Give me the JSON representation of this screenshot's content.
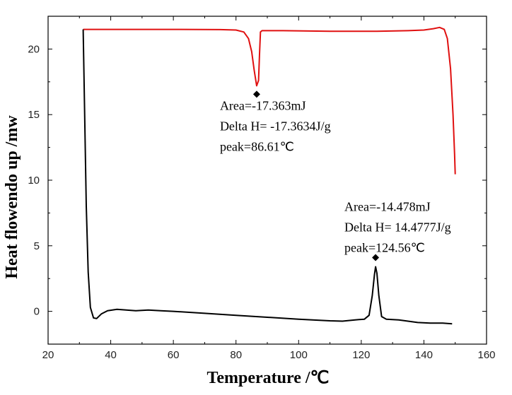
{
  "chart_data": {
    "type": "line",
    "xlabel": "Temperature /℃",
    "ylabel": "Heat flowendo up /mw",
    "xlim": [
      20,
      160
    ],
    "ylim": [
      -2.5,
      22.5
    ],
    "xticks": [
      20,
      40,
      60,
      80,
      100,
      120,
      140,
      160
    ],
    "yticks": [
      0,
      5,
      10,
      15,
      20
    ],
    "grid": false,
    "series": [
      {
        "color": "#e01010",
        "points": [
          [
            31.2,
            21.5
          ],
          [
            40,
            21.5
          ],
          [
            60,
            21.5
          ],
          [
            75,
            21.48
          ],
          [
            80,
            21.45
          ],
          [
            82.5,
            21.3
          ],
          [
            84,
            20.8
          ],
          [
            85,
            19.8
          ],
          [
            85.8,
            18.4
          ],
          [
            86.6,
            17.2
          ],
          [
            87.2,
            17.6
          ],
          [
            87.5,
            19.5
          ],
          [
            87.8,
            21.3
          ],
          [
            88.3,
            21.4
          ],
          [
            95,
            21.4
          ],
          [
            110,
            21.35
          ],
          [
            125,
            21.35
          ],
          [
            135,
            21.4
          ],
          [
            140,
            21.45
          ],
          [
            143,
            21.55
          ],
          [
            145,
            21.65
          ],
          [
            146.5,
            21.5
          ],
          [
            147.5,
            20.8
          ],
          [
            148.5,
            18.5
          ],
          [
            149.3,
            15
          ],
          [
            149.8,
            12
          ],
          [
            150,
            10.45
          ]
        ]
      },
      {
        "color": "#000000",
        "points": [
          [
            31.2,
            21.5
          ],
          [
            31.6,
            16
          ],
          [
            32.2,
            8
          ],
          [
            32.8,
            3
          ],
          [
            33.5,
            0.3
          ],
          [
            34.5,
            -0.5
          ],
          [
            35.5,
            -0.55
          ],
          [
            37,
            -0.2
          ],
          [
            39,
            0.05
          ],
          [
            42,
            0.15
          ],
          [
            45,
            0.1
          ],
          [
            48,
            0.05
          ],
          [
            52,
            0.1
          ],
          [
            56,
            0.05
          ],
          [
            60,
            0.0
          ],
          [
            70,
            -0.15
          ],
          [
            80,
            -0.3
          ],
          [
            90,
            -0.45
          ],
          [
            100,
            -0.6
          ],
          [
            110,
            -0.72
          ],
          [
            114,
            -0.75
          ],
          [
            118,
            -0.65
          ],
          [
            121,
            -0.6
          ],
          [
            122.5,
            -0.3
          ],
          [
            123.5,
            1.2
          ],
          [
            124.2,
            2.8
          ],
          [
            124.56,
            3.4
          ],
          [
            125,
            2.9
          ],
          [
            125.6,
            1.2
          ],
          [
            126.5,
            -0.4
          ],
          [
            128,
            -0.6
          ],
          [
            132,
            -0.65
          ],
          [
            138,
            -0.85
          ],
          [
            142,
            -0.9
          ],
          [
            146,
            -0.9
          ],
          [
            149,
            -0.95
          ]
        ]
      }
    ],
    "markers": [
      {
        "x": 86.6,
        "y": 16.55
      },
      {
        "x": 124.56,
        "y": 4.1
      }
    ],
    "annotations": [
      {
        "lines": [
          "Area=-17.363mJ",
          "Delta H= -17.3634J/g",
          "peak=86.61℃"
        ],
        "x": 86.6,
        "y": 16.55
      },
      {
        "lines": [
          "Area=-14.478mJ",
          "Delta H= 14.4777J/g",
          "peak=124.56℃"
        ],
        "x": 124.56,
        "y": 4.1
      }
    ]
  }
}
